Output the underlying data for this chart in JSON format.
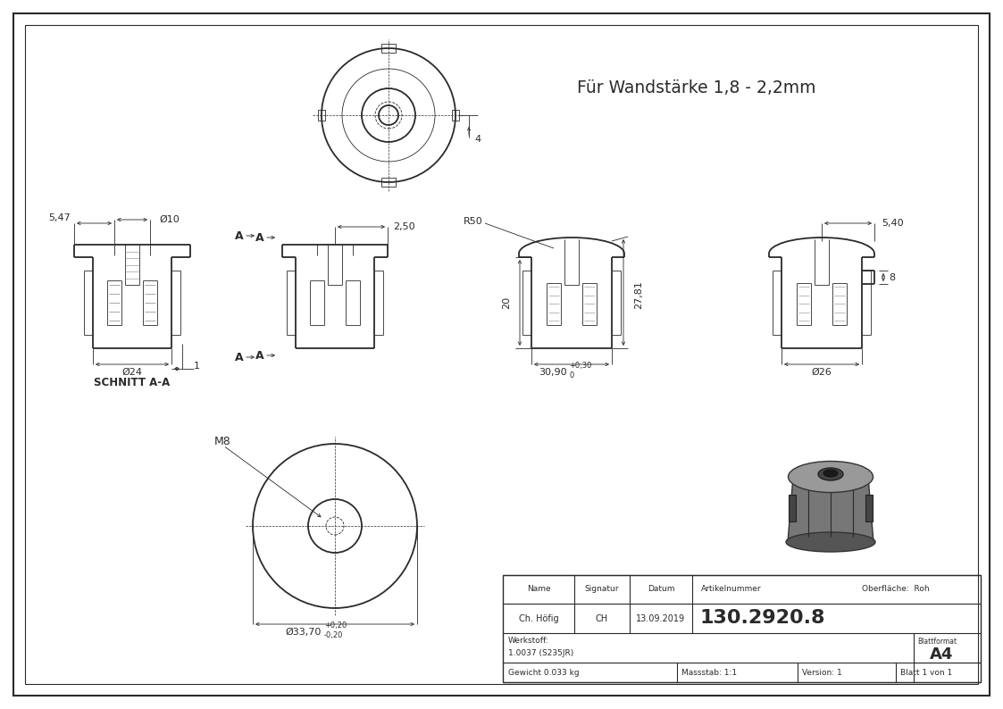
{
  "bg_color": "#ffffff",
  "line_color": "#2a2a2a",
  "title_text": "Für Wandstärke 1,8 - 2,2mm",
  "table": {
    "name_label": "Name",
    "signatur_label": "Signatur",
    "datum_label": "Datum",
    "artikelnummer_label": "Artikelnummer",
    "oberflaeche_label": "Oberfläche:  Roh",
    "name_val": "Ch. Höfig",
    "signatur_val": "CH",
    "datum_val": "13.09.2019",
    "artikelnummer_val": "130.2920.8",
    "werkstoff_label": "Werkstoff:",
    "werkstoff_val": "1.0037 (S235JR)",
    "gewicht_val": "Gewicht 0.033 kg",
    "massstab_val": "Massstab: 1:1",
    "version_val": "Version: 1",
    "blatt_val": "Blatt 1 von 1",
    "blattformat_label": "Blattformat",
    "blattformat_val": "A4"
  },
  "dims": {
    "d10": "Ø10",
    "d24": "Ø24",
    "d26": "Ø26",
    "d33": "Ø33,70",
    "r50": "R50",
    "dim_4": "4",
    "dim_1": "1",
    "dim_8": "8",
    "dim_20": "20",
    "dim_27": "27,81",
    "dim_30": "30,90",
    "dim_547": "5,47",
    "dim_250": "2,50",
    "dim_540": "5,40",
    "dim_m8": "M8",
    "schnitt": "SCHNITT A-A"
  }
}
